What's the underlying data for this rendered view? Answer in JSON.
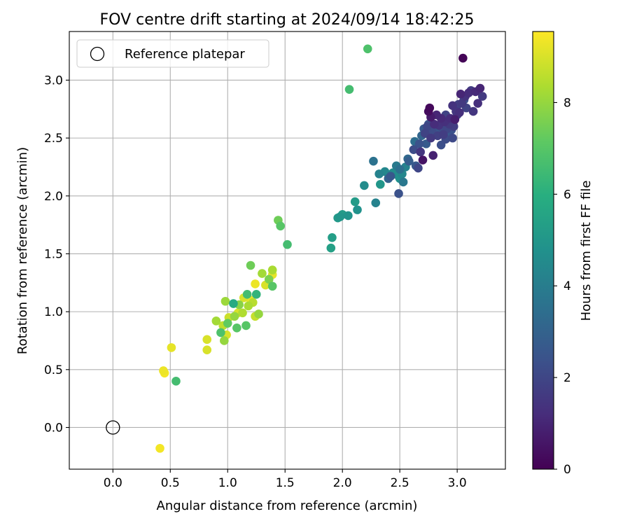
{
  "chart_data": {
    "type": "scatter",
    "title": "FOV centre drift starting at 2024/09/14 18:42:25",
    "xlabel": "Angular distance from reference (arcmin)",
    "ylabel": "Rotation from reference (arcmin)",
    "xlim": [
      -0.38,
      3.42
    ],
    "ylim": [
      -0.36,
      3.42
    ],
    "xticks": [
      0.0,
      0.5,
      1.0,
      1.5,
      2.0,
      2.5,
      3.0
    ],
    "yticks": [
      0.0,
      0.5,
      1.0,
      1.5,
      2.0,
      2.5,
      3.0
    ],
    "xtick_labels": [
      "0.0",
      "0.5",
      "1.0",
      "1.5",
      "2.0",
      "2.5",
      "3.0"
    ],
    "ytick_labels": [
      "0.0",
      "0.5",
      "1.0",
      "1.5",
      "2.0",
      "2.5",
      "3.0"
    ],
    "grid": true,
    "legend": {
      "placement": "top-left",
      "entries": [
        {
          "label": "Reference platepar",
          "marker": "open-circle"
        }
      ]
    },
    "reference_point": {
      "x": 0.0,
      "y": 0.0
    },
    "colorbar": {
      "label": "Hours from first FF file",
      "colormap": "viridis",
      "range": [
        0,
        9.55
      ],
      "ticks": [
        0,
        2,
        4,
        6,
        8
      ],
      "tick_labels": [
        "0",
        "2",
        "4",
        "6",
        "8"
      ]
    },
    "series": [
      {
        "values": [
          [
            0.41,
            -0.18,
            9.4
          ],
          [
            0.44,
            0.49,
            9.3
          ],
          [
            0.45,
            0.47,
            9.4
          ],
          [
            0.51,
            0.69,
            9.2
          ],
          [
            0.55,
            0.4,
            6.6
          ],
          [
            0.82,
            0.76,
            9.0
          ],
          [
            0.82,
            0.67,
            9.0
          ],
          [
            0.9,
            0.92,
            8.2
          ],
          [
            0.94,
            0.82,
            6.8
          ],
          [
            0.96,
            0.88,
            8.6
          ],
          [
            0.97,
            0.75,
            8.0
          ],
          [
            0.98,
            1.09,
            8.1
          ],
          [
            0.99,
            0.8,
            9.0
          ],
          [
            1.0,
            0.9,
            7.2
          ],
          [
            1.01,
            0.95,
            8.8
          ],
          [
            1.05,
            1.07,
            5.8
          ],
          [
            1.06,
            0.96,
            8.0
          ],
          [
            1.08,
            0.86,
            7.0
          ],
          [
            1.09,
            0.99,
            9.0
          ],
          [
            1.1,
            1.06,
            7.8
          ],
          [
            1.13,
            0.99,
            8.4
          ],
          [
            1.14,
            1.12,
            9.0
          ],
          [
            1.16,
            0.88,
            7.0
          ],
          [
            1.17,
            1.15,
            6.6
          ],
          [
            1.18,
            1.05,
            8.3
          ],
          [
            1.2,
            1.1,
            9.2
          ],
          [
            1.2,
            1.4,
            7.4
          ],
          [
            1.22,
            1.08,
            8.5
          ],
          [
            1.24,
            0.96,
            8.7
          ],
          [
            1.24,
            1.24,
            9.3
          ],
          [
            1.25,
            1.15,
            6.2
          ],
          [
            1.27,
            0.98,
            8.0
          ],
          [
            1.3,
            1.33,
            8.2
          ],
          [
            1.33,
            1.23,
            9.0
          ],
          [
            1.36,
            1.28,
            7.6
          ],
          [
            1.39,
            1.22,
            7.0
          ],
          [
            1.39,
            1.36,
            8.3
          ],
          [
            1.39,
            1.32,
            9.2
          ],
          [
            1.44,
            1.79,
            7.4
          ],
          [
            1.46,
            1.74,
            7.0
          ],
          [
            1.52,
            1.58,
            6.6
          ],
          [
            1.9,
            1.55,
            5.4
          ],
          [
            1.91,
            1.64,
            5.3
          ],
          [
            1.96,
            1.81,
            5.1
          ],
          [
            1.98,
            1.82,
            5.0
          ],
          [
            2.0,
            1.84,
            5.2
          ],
          [
            2.05,
            1.83,
            4.9
          ],
          [
            2.11,
            1.95,
            5.2
          ],
          [
            2.13,
            1.88,
            4.8
          ],
          [
            2.19,
            2.09,
            4.6
          ],
          [
            2.27,
            2.3,
            3.6
          ],
          [
            2.29,
            1.94,
            4.2
          ],
          [
            2.32,
            2.19,
            4.2
          ],
          [
            2.33,
            2.1,
            5.0
          ],
          [
            2.37,
            2.21,
            4.4
          ],
          [
            2.4,
            2.15,
            3.0
          ],
          [
            2.42,
            2.17,
            2.6
          ],
          [
            2.44,
            2.2,
            4.6
          ],
          [
            2.47,
            2.26,
            3.9
          ],
          [
            2.48,
            2.18,
            4.7
          ],
          [
            2.49,
            2.02,
            2.4
          ],
          [
            2.5,
            2.23,
            3.5
          ],
          [
            2.5,
            2.15,
            4.8
          ],
          [
            2.52,
            2.19,
            4.4
          ],
          [
            2.53,
            2.12,
            3.8
          ],
          [
            2.55,
            2.25,
            4.2
          ],
          [
            2.57,
            2.32,
            3.2
          ],
          [
            2.58,
            2.3,
            2.8
          ],
          [
            2.62,
            2.4,
            2.2
          ],
          [
            2.63,
            2.47,
            3.4
          ],
          [
            2.64,
            2.26,
            2.6
          ],
          [
            2.66,
            2.24,
            2.0
          ],
          [
            2.67,
            2.45,
            2.4
          ],
          [
            2.68,
            2.38,
            1.5
          ],
          [
            2.69,
            2.52,
            3.1
          ],
          [
            2.7,
            2.31,
            0.5
          ],
          [
            2.71,
            2.58,
            2.6
          ],
          [
            2.72,
            2.54,
            1.9
          ],
          [
            2.73,
            2.45,
            2.7
          ],
          [
            2.74,
            2.6,
            2.0
          ],
          [
            2.75,
            2.73,
            0.3
          ],
          [
            2.75,
            2.62,
            2.4
          ],
          [
            2.76,
            2.76,
            0.2
          ],
          [
            2.77,
            2.5,
            1.6
          ],
          [
            2.77,
            2.68,
            0.7
          ],
          [
            2.78,
            2.56,
            2.2
          ],
          [
            2.79,
            2.35,
            0.9
          ],
          [
            2.8,
            2.62,
            1.2
          ],
          [
            2.81,
            2.58,
            2.9
          ],
          [
            2.82,
            2.7,
            1.0
          ],
          [
            2.83,
            2.52,
            1.8
          ],
          [
            2.84,
            2.61,
            1.4
          ],
          [
            2.85,
            2.56,
            2.5
          ],
          [
            2.86,
            2.44,
            2.3
          ],
          [
            2.86,
            2.67,
            1.1
          ],
          [
            2.87,
            2.59,
            2.1
          ],
          [
            2.88,
            2.53,
            1.7
          ],
          [
            2.89,
            2.64,
            1.3
          ],
          [
            2.9,
            2.49,
            2.2
          ],
          [
            2.9,
            2.7,
            1.9
          ],
          [
            2.91,
            2.58,
            2.0
          ],
          [
            2.92,
            2.55,
            2.7
          ],
          [
            2.93,
            2.62,
            1.6
          ],
          [
            2.94,
            2.67,
            1.2
          ],
          [
            2.95,
            2.57,
            2.4
          ],
          [
            2.96,
            2.5,
            2.1
          ],
          [
            2.96,
            2.78,
            1.4
          ],
          [
            2.97,
            2.6,
            1.7
          ],
          [
            2.98,
            2.66,
            0.8
          ],
          [
            2.99,
            2.73,
            1.5
          ],
          [
            3.0,
            2.7,
            2.0
          ],
          [
            3.01,
            2.79,
            1.8
          ],
          [
            3.02,
            2.72,
            1.3
          ],
          [
            3.03,
            2.88,
            1.0
          ],
          [
            3.04,
            2.8,
            1.6
          ],
          [
            3.05,
            3.19,
            0.1
          ],
          [
            3.06,
            2.83,
            2.3
          ],
          [
            3.07,
            2.86,
            1.4
          ],
          [
            3.08,
            2.76,
            1.9
          ],
          [
            3.1,
            2.89,
            1.2
          ],
          [
            3.12,
            2.91,
            1.7
          ],
          [
            3.14,
            2.73,
            1.5
          ],
          [
            3.16,
            2.9,
            1.1
          ],
          [
            3.18,
            2.8,
            1.3
          ],
          [
            3.2,
            2.93,
            1.0
          ],
          [
            3.22,
            2.86,
            1.6
          ],
          [
            2.06,
            2.92,
            6.6
          ],
          [
            2.22,
            3.27,
            6.8
          ]
        ]
      }
    ]
  }
}
